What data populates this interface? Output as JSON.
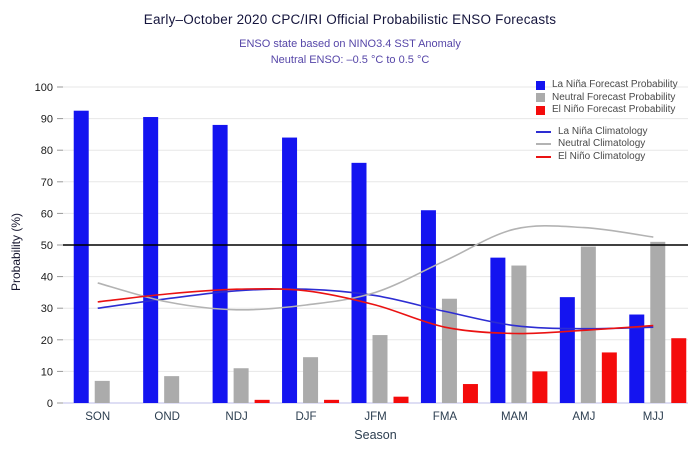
{
  "title": "Early–October 2020 CPC/IRI Official Probabilistic ENSO Forecasts",
  "subtitle1": "ENSO state based on NINO3.4 SST Anomaly",
  "subtitle2": "Neutral ENSO: –0.5 °C to 0.5 °C",
  "colors": {
    "title": "#15153d",
    "subtitle": "#5646a8",
    "gridline": "#e7e7e7",
    "baseline": "#c9c9ee",
    "tick": "#999999",
    "tick_label": "#1a1a1a",
    "category_label": "#2c3e50",
    "reference_line": "#000000"
  },
  "chart_data": {
    "type": "bar",
    "title": "Early–October 2020 CPC/IRI Official Probabilistic ENSO Forecasts",
    "subtitle": [
      "ENSO state based on NINO3.4 SST Anomaly",
      "Neutral ENSO: –0.5 °C to 0.5 °C"
    ],
    "categories": [
      "SON",
      "OND",
      "NDJ",
      "DJF",
      "JFM",
      "FMA",
      "MAM",
      "AMJ",
      "MJJ"
    ],
    "xlabel": "Season",
    "ylabel": "Probability (%)",
    "ylim": [
      0,
      100
    ],
    "ytick_step": 10,
    "grid": true,
    "legend_position": "top-right",
    "reference_line_y": 50,
    "series": [
      {
        "name": "La Niña Forecast Probability",
        "type": "bar",
        "color": "#1414f0",
        "values": [
          92.5,
          90.5,
          88,
          84,
          76,
          61,
          46,
          33.5,
          28
        ]
      },
      {
        "name": "Neutral Forecast Probability",
        "type": "bar",
        "color": "#ababab",
        "values": [
          7,
          8.5,
          11,
          14.5,
          21.5,
          33,
          43.5,
          49.5,
          51
        ]
      },
      {
        "name": "El Niño Forecast Probability",
        "type": "bar",
        "color": "#f40b0b",
        "values": [
          0,
          0,
          1,
          1,
          2,
          6,
          10,
          16,
          20.5
        ]
      },
      {
        "name": "La Niña Climatology",
        "type": "line",
        "color": "#2d2dd2",
        "values": [
          30,
          33,
          35.5,
          36,
          34,
          29,
          24.5,
          23.5,
          24
        ]
      },
      {
        "name": "Neutral Climatology",
        "type": "line",
        "color": "#b3b3b3",
        "values": [
          38,
          32,
          29.5,
          31,
          35,
          45,
          55,
          55.5,
          52.5
        ]
      },
      {
        "name": "El Niño Climatology",
        "type": "line",
        "color": "#ea1212",
        "values": [
          32,
          34.5,
          36,
          35.5,
          31,
          24,
          22,
          23,
          24.5
        ]
      }
    ]
  }
}
